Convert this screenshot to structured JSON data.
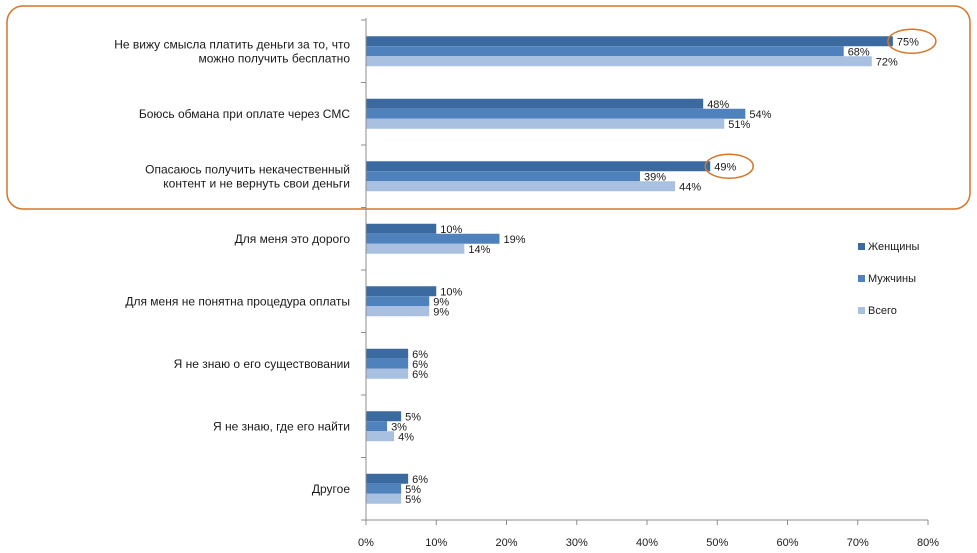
{
  "chart_data": {
    "type": "bar",
    "orientation": "horizontal",
    "categories": [
      [
        "Не вижу смысла платить деньги за то, что",
        "можно получить бесплатно"
      ],
      [
        "Боюсь обмана при оплате через СМС"
      ],
      [
        "Опасаюсь получить некачественный",
        "контент и не вернуть свои деньги"
      ],
      [
        "Для меня это дорого"
      ],
      [
        "Для меня не понятна процедура оплаты"
      ],
      [
        "Я не знаю о его существовании"
      ],
      [
        "Я не знаю, где его найти"
      ],
      [
        "Другое"
      ]
    ],
    "series": [
      {
        "name": "Женщины",
        "color": "#3b6aa0",
        "values": [
          75,
          48,
          49,
          10,
          10,
          6,
          5,
          6
        ],
        "labels": [
          "75%",
          "48%",
          "49%",
          "10%",
          "10%",
          "6%",
          "5%",
          "6%"
        ]
      },
      {
        "name": "Мужчины",
        "color": "#4f81bd",
        "values": [
          68,
          54,
          39,
          19,
          9,
          6,
          3,
          5
        ],
        "labels": [
          "68%",
          "54%",
          "39%",
          "19%",
          "9%",
          "6%",
          "3%",
          "5%"
        ]
      },
      {
        "name": "Всего",
        "color": "#a9c0e0",
        "values": [
          72,
          51,
          44,
          14,
          9,
          6,
          4,
          5
        ],
        "labels": [
          "72%",
          "51%",
          "44%",
          "14%",
          "9%",
          "6%",
          "4%",
          "5%"
        ]
      }
    ],
    "xlim": [
      0,
      80
    ],
    "xticks": [
      0,
      10,
      20,
      30,
      40,
      50,
      60,
      70,
      80
    ],
    "xtick_labels": [
      "0%",
      "10%",
      "20%",
      "30%",
      "40%",
      "50%",
      "60%",
      "70%",
      "80%"
    ],
    "grid": false,
    "legend": "right",
    "highlight_box": {
      "categories": [
        0,
        1,
        2
      ],
      "color": "#d4762a"
    },
    "highlight_circles": [
      {
        "category": 0,
        "series": 0,
        "color": "#d4762a"
      },
      {
        "category": 2,
        "series": 0,
        "color": "#d4762a"
      }
    ]
  }
}
